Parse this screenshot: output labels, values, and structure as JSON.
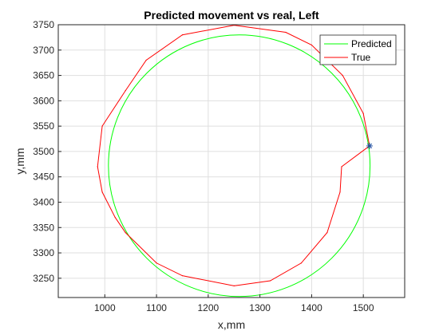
{
  "chart_data": {
    "type": "line",
    "title": "Predicted movement vs real, Left",
    "xlabel": "x,mm",
    "ylabel": "y,mm",
    "xlim": [
      910,
      1580
    ],
    "ylim": [
      3212,
      3750
    ],
    "xticks": [
      1000,
      1100,
      1200,
      1300,
      1400,
      1500
    ],
    "yticks": [
      3250,
      3300,
      3350,
      3400,
      3450,
      3500,
      3550,
      3600,
      3650,
      3700,
      3750
    ],
    "grid": true,
    "legend_position": "top-right",
    "series": [
      {
        "name": "Predicted",
        "color": "#00ff00",
        "shape": "circle",
        "cx": 1260,
        "cy": 3472,
        "rx": 253,
        "ry": 258
      },
      {
        "name": "True",
        "color": "#ff0000",
        "points": [
          [
            1512,
            3511
          ],
          [
            1500,
            3575
          ],
          [
            1460,
            3650
          ],
          [
            1400,
            3710
          ],
          [
            1350,
            3735
          ],
          [
            1250,
            3749
          ],
          [
            1150,
            3730
          ],
          [
            1080,
            3680
          ],
          [
            1040,
            3620
          ],
          [
            995,
            3550
          ],
          [
            986,
            3470
          ],
          [
            995,
            3420
          ],
          [
            1020,
            3370
          ],
          [
            1040,
            3340
          ],
          [
            1100,
            3280
          ],
          [
            1150,
            3255
          ],
          [
            1250,
            3235
          ],
          [
            1320,
            3245
          ],
          [
            1380,
            3280
          ],
          [
            1430,
            3340
          ],
          [
            1455,
            3420
          ],
          [
            1458,
            3470
          ],
          [
            1512,
            3511
          ]
        ]
      }
    ],
    "marker": {
      "symbol": "*",
      "color": "#1f4e9e",
      "x": 1512,
      "y": 3511
    }
  }
}
